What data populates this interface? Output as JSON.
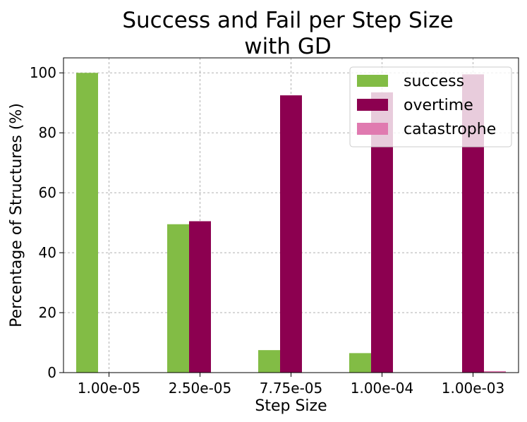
{
  "chart_data": {
    "type": "bar",
    "title_lines": [
      "Success and Fail per Step Size",
      "with GD"
    ],
    "xlabel": "Step Size",
    "ylabel": "Percentage of Structures (%)",
    "categories": [
      "1.00e-05",
      "2.50e-05",
      "7.75e-05",
      "1.00e-04",
      "1.00e-03"
    ],
    "series": [
      {
        "name": "success",
        "color": "#82bc45",
        "values": [
          100,
          49.5,
          7.5,
          6.5,
          0
        ]
      },
      {
        "name": "overtime",
        "color": "#8c0050",
        "values": [
          0,
          50.5,
          92.5,
          93.5,
          99.5
        ]
      },
      {
        "name": "catastrophe",
        "color": "#e07ab0",
        "values": [
          0,
          0,
          0,
          0,
          0.5
        ]
      }
    ],
    "ylim": [
      0,
      105
    ],
    "yticks": [
      0,
      20,
      40,
      60,
      80,
      100
    ],
    "grid": true,
    "legend_position": "top-right"
  }
}
